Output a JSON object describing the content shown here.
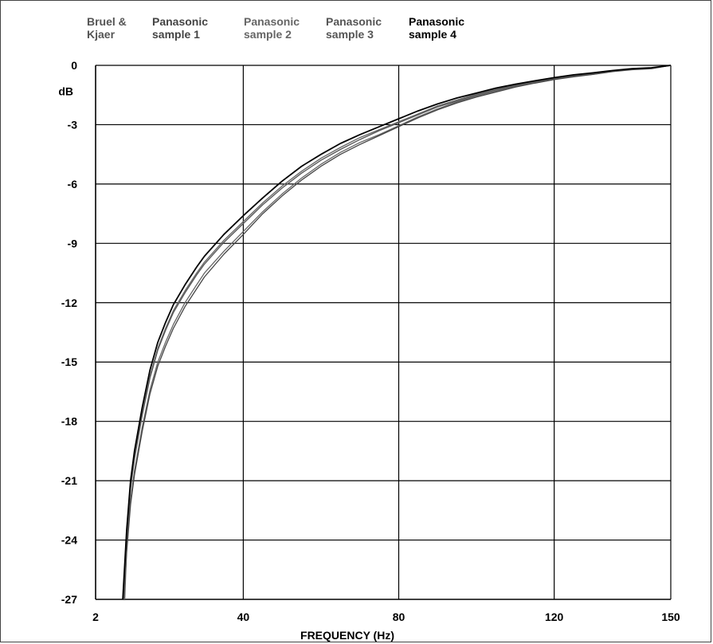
{
  "chart_data": {
    "type": "line",
    "title": "",
    "xlabel": "FREQUENCY (Hz)",
    "ylabel": "dB",
    "xlim": [
      2,
      150
    ],
    "ylim": [
      -27,
      0
    ],
    "x_tick_labels": [
      {
        "value": 2,
        "label": "2"
      },
      {
        "value": 40,
        "label": "40"
      },
      {
        "value": 80,
        "label": "80"
      },
      {
        "value": 120,
        "label": "120"
      },
      {
        "value": 150,
        "label": "150"
      }
    ],
    "y_ticks": [
      0,
      -3,
      -6,
      -9,
      -12,
      -15,
      -18,
      -21,
      -24,
      -27
    ],
    "x_gridlines": [
      40,
      80,
      120
    ],
    "grid": true,
    "legend_position": "top",
    "series": [
      {
        "name": "Bruel &\nKjaer",
        "color": "#666666",
        "x": [
          9.5,
          10,
          11,
          12,
          14,
          16,
          18,
          20,
          22,
          25,
          28,
          30,
          35,
          40,
          45,
          50,
          55,
          60,
          65,
          70,
          75,
          80,
          85,
          90,
          95,
          100,
          105,
          110,
          115,
          120,
          125,
          130,
          135,
          140,
          145,
          150
        ],
        "y": [
          -27,
          -24.4,
          -22,
          -20.5,
          -18.3,
          -16.4,
          -15.0,
          -14.0,
          -13.1,
          -12.0,
          -11.1,
          -10.5,
          -9.4,
          -8.4,
          -7.4,
          -6.5,
          -5.7,
          -5.0,
          -4.4,
          -3.9,
          -3.5,
          -3.05,
          -2.6,
          -2.2,
          -1.85,
          -1.55,
          -1.3,
          -1.05,
          -0.85,
          -0.7,
          -0.55,
          -0.45,
          -0.3,
          -0.2,
          -0.15,
          0
        ]
      },
      {
        "name": "Panasonic\nsample 1",
        "color": "#444444",
        "x": [
          9.3,
          10,
          11,
          12,
          14,
          16,
          18,
          20,
          22,
          25,
          28,
          30,
          35,
          40,
          45,
          50,
          55,
          60,
          65,
          70,
          75,
          80,
          85,
          90,
          95,
          100,
          105,
          110,
          115,
          120,
          125,
          130,
          135,
          140,
          145,
          150
        ],
        "y": [
          -27,
          -24.6,
          -22.2,
          -20.7,
          -18.5,
          -16.6,
          -15.2,
          -14.2,
          -13.3,
          -12.2,
          -11.3,
          -10.7,
          -9.55,
          -8.55,
          -7.5,
          -6.6,
          -5.8,
          -5.1,
          -4.5,
          -4.0,
          -3.55,
          -3.1,
          -2.65,
          -2.25,
          -1.9,
          -1.6,
          -1.35,
          -1.1,
          -0.9,
          -0.72,
          -0.58,
          -0.46,
          -0.32,
          -0.22,
          -0.17,
          0
        ]
      },
      {
        "name": "Panasonic\nsample 2",
        "color": "#666666",
        "x": [
          9.2,
          10,
          11,
          12,
          14,
          16,
          18,
          20,
          22,
          25,
          28,
          30,
          35,
          40,
          45,
          50,
          55,
          60,
          65,
          70,
          75,
          80,
          85,
          90,
          95,
          100,
          105,
          110,
          115,
          120,
          125,
          130,
          135,
          140,
          145,
          150
        ],
        "y": [
          -27,
          -23.8,
          -21.3,
          -19.8,
          -17.6,
          -15.7,
          -14.3,
          -13.3,
          -12.4,
          -11.4,
          -10.5,
          -9.95,
          -8.85,
          -7.9,
          -6.95,
          -6.1,
          -5.35,
          -4.7,
          -4.15,
          -3.65,
          -3.25,
          -2.85,
          -2.45,
          -2.05,
          -1.75,
          -1.45,
          -1.2,
          -1.0,
          -0.8,
          -0.65,
          -0.5,
          -0.4,
          -0.28,
          -0.18,
          -0.14,
          0
        ]
      },
      {
        "name": "Panasonic\nsample 3",
        "color": "#555555",
        "x": [
          9.3,
          10,
          11,
          12,
          14,
          16,
          18,
          20,
          22,
          25,
          28,
          30,
          35,
          40,
          45,
          50,
          55,
          60,
          65,
          70,
          75,
          80,
          85,
          90,
          95,
          100,
          105,
          110,
          115,
          120,
          125,
          130,
          135,
          140,
          145,
          150
        ],
        "y": [
          -27,
          -23.9,
          -21.4,
          -19.9,
          -17.7,
          -15.8,
          -14.4,
          -13.4,
          -12.5,
          -11.5,
          -10.6,
          -10.05,
          -8.95,
          -8.0,
          -7.05,
          -6.2,
          -5.45,
          -4.8,
          -4.25,
          -3.75,
          -3.3,
          -2.9,
          -2.5,
          -2.1,
          -1.8,
          -1.5,
          -1.25,
          -1.02,
          -0.82,
          -0.67,
          -0.52,
          -0.42,
          -0.29,
          -0.19,
          -0.15,
          0
        ]
      },
      {
        "name": "Panasonic\nsample 4",
        "color": "#000000",
        "x": [
          9.0,
          10,
          11,
          12,
          14,
          16,
          18,
          20,
          22,
          25,
          28,
          30,
          35,
          40,
          45,
          50,
          55,
          60,
          65,
          70,
          75,
          80,
          85,
          90,
          95,
          100,
          105,
          110,
          115,
          120,
          125,
          130,
          135,
          140,
          145,
          150
        ],
        "y": [
          -27,
          -23.5,
          -21.0,
          -19.5,
          -17.3,
          -15.4,
          -14.0,
          -13.0,
          -12.1,
          -11.1,
          -10.2,
          -9.65,
          -8.55,
          -7.6,
          -6.7,
          -5.85,
          -5.1,
          -4.5,
          -3.95,
          -3.5,
          -3.1,
          -2.7,
          -2.3,
          -1.95,
          -1.65,
          -1.4,
          -1.15,
          -0.95,
          -0.78,
          -0.62,
          -0.48,
          -0.38,
          -0.26,
          -0.17,
          -0.12,
          0
        ]
      }
    ]
  }
}
